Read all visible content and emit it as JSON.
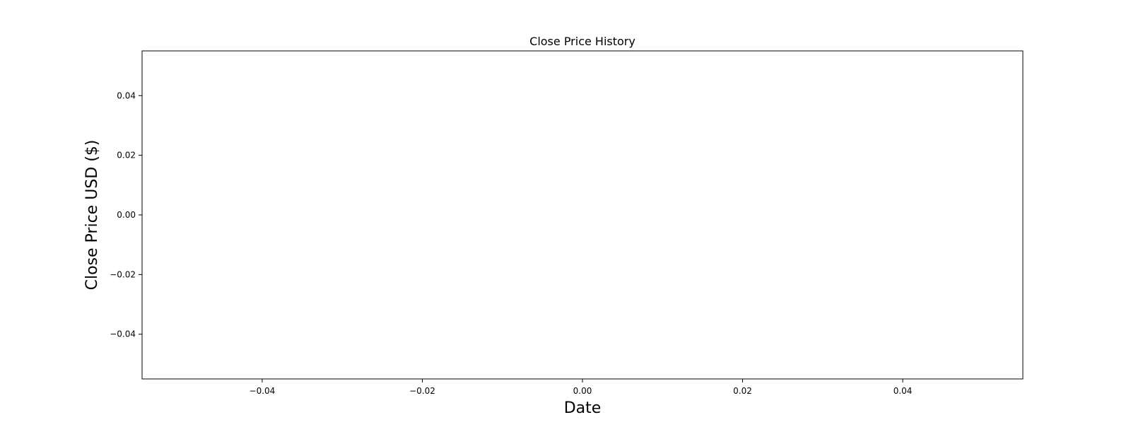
{
  "chart_data": {
    "type": "line",
    "title": "Close Price History",
    "xlabel": "Date",
    "ylabel": "Close Price USD ($)",
    "xlim": [
      -0.055,
      0.055
    ],
    "ylim": [
      -0.055,
      0.055
    ],
    "x_ticks": [
      -0.04,
      -0.02,
      0.0,
      0.02,
      0.04
    ],
    "x_tick_labels": [
      "−0.04",
      "−0.02",
      "0.00",
      "0.02",
      "0.04"
    ],
    "y_ticks": [
      0.04,
      0.02,
      0.0,
      -0.02,
      -0.04
    ],
    "y_tick_labels": [
      "0.04",
      "0.02",
      "0.00",
      "−0.02",
      "−0.04"
    ],
    "series": [
      {
        "x": [],
        "y": []
      }
    ],
    "grid": false,
    "legend": "none",
    "colors": {
      "axes": "#000000",
      "background": "#ffffff"
    }
  }
}
